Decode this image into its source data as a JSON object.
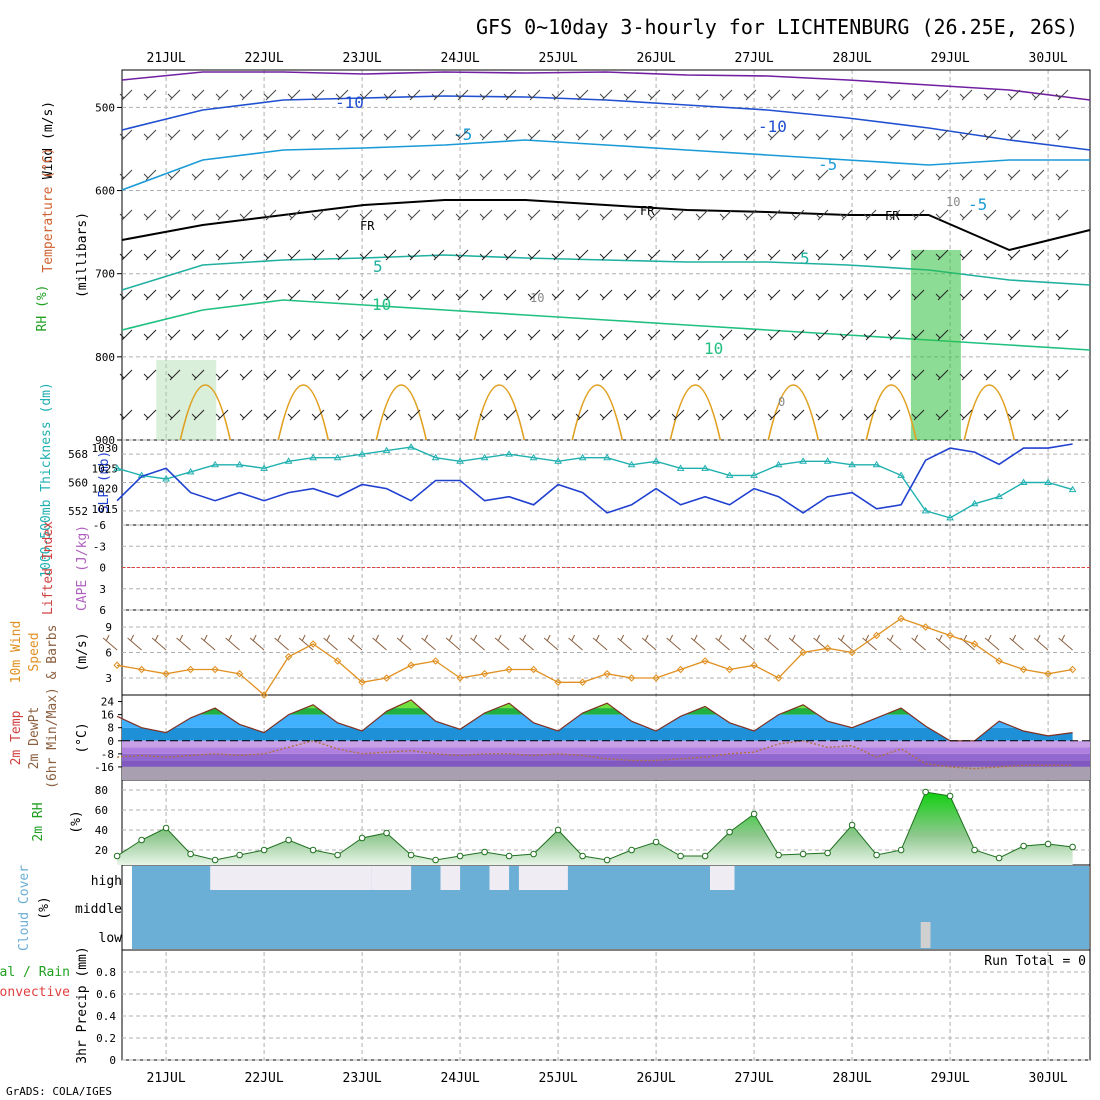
{
  "title": "GFS 0~10day 3-hourly for LICHTENBURG (26.25E, 26S)",
  "credit": "GrADS: COLA/IGES",
  "days": [
    "21JUL",
    "22JUL",
    "23JUL",
    "24JUL",
    "25JUL",
    "26JUL",
    "27JUL",
    "28JUL",
    "29JUL",
    "30JUL"
  ],
  "panels": {
    "upper": {
      "ylabel": "(millibars)",
      "side_labels": [
        {
          "text": "Wind (m/s)",
          "color": "#000000"
        },
        {
          "text": "Temperature (°C)",
          "color": "#d06030"
        },
        {
          "text": "RH (%)",
          "color": "#20a020"
        }
      ],
      "yticks": [
        "500",
        "600",
        "700",
        "800",
        "900"
      ],
      "contour_labels": [
        "-10",
        "-10",
        "-5",
        "-5",
        "-5",
        "5",
        "5",
        "10",
        "10",
        "FR",
        "FR",
        "FR",
        "10",
        "0",
        "10"
      ]
    },
    "slp": {
      "left_label": "1000-500mb Thickness (dm)",
      "right_label": "SLP (mb)",
      "left_ticks": [
        "552",
        "560",
        "568"
      ],
      "right_ticks": [
        "1015",
        "1020",
        "1025",
        "1030"
      ]
    },
    "li": {
      "label1": "Lifted Index",
      "label2": "CAPE (J/kg)",
      "yticks": [
        "-6",
        "-3",
        "0",
        "3",
        "6"
      ]
    },
    "wind10": {
      "label1": "10m Wind",
      "label2": "Speed",
      "label3": "& Barbs",
      "unit": "(m/s)",
      "yticks": [
        "3",
        "6",
        "9"
      ]
    },
    "temp2m": {
      "label1": "2m Temp",
      "label2": "2m DewPt",
      "label3": "(6hr Min/Max)",
      "unit": "(°C)",
      "yticks": [
        "24",
        "16",
        "8",
        "0",
        "-8",
        "-16"
      ]
    },
    "rh2m": {
      "label": "2m RH",
      "unit": "(%)",
      "yticks": [
        "80",
        "60",
        "40",
        "20"
      ]
    },
    "cloud": {
      "label": "Cloud Cover",
      "unit": "(%)",
      "levels": [
        "high",
        "middle",
        "low"
      ]
    },
    "precip": {
      "label1": "Total / Rain",
      "label2": "Convective",
      "ylabel": "3hr Precip (mm)",
      "yticks": [
        "0.8",
        "0.6",
        "0.4",
        "0.2",
        "0"
      ],
      "run_total": "Run Total = 0"
    }
  },
  "colors": {
    "thickness": "#20b0b0",
    "slp": "#2040d0",
    "wind_speed": "#e09020",
    "barbs": "#8b6040",
    "rh": "#20a020",
    "cloud": "#6baed6",
    "grid": "#b0b0b0",
    "zero_line": "#e04040"
  },
  "chart_data": [
    {
      "type": "line",
      "name": "1000-500mb Thickness",
      "units": "dm",
      "x_days": [
        20.5,
        20.75,
        21,
        21.25,
        21.5,
        21.75,
        22,
        22.25,
        22.5,
        22.75,
        23,
        23.25,
        23.5,
        23.75,
        24,
        24.25,
        24.5,
        24.75,
        25,
        25.25,
        25.5,
        25.75,
        26,
        26.25,
        26.5,
        26.75,
        27,
        27.25,
        27.5,
        27.75,
        28,
        28.25,
        28.5,
        28.75,
        29,
        29.25,
        29.5,
        29.75,
        30,
        30.25
      ],
      "values": [
        564,
        562,
        561,
        563,
        565,
        565,
        564,
        566,
        567,
        567,
        568,
        569,
        570,
        567,
        566,
        567,
        568,
        567,
        566,
        567,
        567,
        565,
        566,
        564,
        564,
        562,
        562,
        565,
        566,
        566,
        565,
        565,
        562,
        552,
        550,
        554,
        556,
        560,
        560,
        558
      ]
    },
    {
      "type": "line",
      "name": "SLP",
      "units": "mb",
      "x_days": [
        20.5,
        20.75,
        21,
        21.25,
        21.5,
        21.75,
        22,
        22.25,
        22.5,
        22.75,
        23,
        23.25,
        23.5,
        23.75,
        24,
        24.25,
        24.5,
        24.75,
        25,
        25.25,
        25.5,
        25.75,
        26,
        26.25,
        26.5,
        26.75,
        27,
        27.25,
        27.5,
        27.75,
        28,
        28.25,
        28.5,
        28.75,
        29,
        29.25,
        29.5,
        29.75,
        30,
        30.25
      ],
      "values": [
        1017,
        1023,
        1025,
        1019,
        1017,
        1019,
        1017,
        1019,
        1020,
        1018,
        1021,
        1020,
        1017,
        1022,
        1022,
        1017,
        1018,
        1016,
        1021,
        1019,
        1014,
        1016,
        1020,
        1016,
        1018,
        1016,
        1020,
        1018,
        1014,
        1018,
        1019,
        1015,
        1016,
        1027,
        1030,
        1029,
        1026,
        1030,
        1030,
        1031
      ]
    },
    {
      "type": "line",
      "name": "10m Wind Speed",
      "units": "m/s",
      "x_days": [
        20.5,
        20.75,
        21,
        21.25,
        21.5,
        21.75,
        22,
        22.25,
        22.5,
        22.75,
        23,
        23.25,
        23.5,
        23.75,
        24,
        24.25,
        24.5,
        24.75,
        25,
        25.25,
        25.5,
        25.75,
        26,
        26.25,
        26.5,
        26.75,
        27,
        27.25,
        27.5,
        27.75,
        28,
        28.25,
        28.5,
        28.75,
        29,
        29.25,
        29.5,
        29.75,
        30,
        30.25
      ],
      "values": [
        4.5,
        4,
        3.5,
        4,
        4,
        3.5,
        1,
        5.5,
        7,
        5,
        2.5,
        3,
        4.5,
        5,
        3,
        3.5,
        4,
        4,
        2.5,
        2.5,
        3.5,
        3,
        3,
        4,
        5,
        4,
        4.5,
        3,
        6,
        6.5,
        6,
        8,
        10,
        9,
        8,
        7,
        5,
        4,
        3.5,
        4
      ]
    },
    {
      "type": "area",
      "name": "2m Temp",
      "units": "°C",
      "x_days": [
        20.5,
        20.75,
        21,
        21.25,
        21.5,
        21.75,
        22,
        22.25,
        22.5,
        22.75,
        23,
        23.25,
        23.5,
        23.75,
        24,
        24.25,
        24.5,
        24.75,
        25,
        25.25,
        25.5,
        25.75,
        26,
        26.25,
        26.5,
        26.75,
        27,
        27.25,
        27.5,
        27.75,
        28,
        28.25,
        28.5,
        28.75,
        29,
        29.25,
        29.5,
        29.75,
        30,
        30.25
      ],
      "values": [
        15,
        8,
        5,
        14,
        20,
        10,
        5,
        16,
        22,
        11,
        6,
        18,
        25,
        12,
        7,
        17,
        23,
        11,
        6,
        17,
        23,
        12,
        6,
        15,
        21,
        11,
        6,
        16,
        22,
        12,
        8,
        14,
        20,
        9,
        0,
        0,
        12,
        6,
        3,
        5
      ]
    },
    {
      "type": "line",
      "name": "2m DewPt",
      "units": "°C",
      "x_days": [
        20.5,
        20.75,
        21,
        21.25,
        21.5,
        21.75,
        22,
        22.25,
        22.5,
        22.75,
        23,
        23.25,
        23.5,
        23.75,
        24,
        24.25,
        24.5,
        24.75,
        25,
        25.25,
        25.5,
        25.75,
        26,
        26.25,
        26.5,
        26.75,
        27,
        27.25,
        27.5,
        27.75,
        28,
        28.25,
        28.5,
        28.75,
        29,
        29.25,
        29.5,
        29.75,
        30,
        30.25
      ],
      "values": [
        -10,
        -9,
        -10,
        -9,
        -8,
        -9,
        -8,
        -4,
        0,
        -5,
        -8,
        -7,
        -6,
        -8,
        -9,
        -8,
        -8,
        -9,
        -8,
        -9,
        -11,
        -12,
        -12,
        -11,
        -10,
        -8,
        -7,
        -2,
        0,
        -4,
        -3,
        -10,
        -5,
        -14,
        -16,
        -17,
        -16,
        -15,
        -15,
        -15
      ]
    },
    {
      "type": "area",
      "name": "2m RH",
      "units": "%",
      "x_days": [
        20.5,
        20.75,
        21,
        21.25,
        21.5,
        21.75,
        22,
        22.25,
        22.5,
        22.75,
        23,
        23.25,
        23.5,
        23.75,
        24,
        24.25,
        24.5,
        24.75,
        25,
        25.25,
        25.5,
        25.75,
        26,
        26.25,
        26.5,
        26.75,
        27,
        27.25,
        27.5,
        27.75,
        28,
        28.25,
        28.5,
        28.75,
        29,
        29.25,
        29.5,
        29.75,
        30,
        30.25
      ],
      "values": [
        14,
        30,
        42,
        16,
        10,
        15,
        20,
        30,
        20,
        15,
        32,
        37,
        15,
        10,
        14,
        18,
        14,
        16,
        40,
        14,
        10,
        20,
        28,
        14,
        14,
        38,
        56,
        15,
        16,
        17,
        45,
        15,
        20,
        78,
        74,
        20,
        12,
        24,
        26,
        23
      ]
    },
    {
      "type": "bar",
      "name": "Cloud Cover",
      "units": "%",
      "high_clear_spans": [
        [
          21.45,
          22.3
        ],
        [
          22.3,
          23.1
        ],
        [
          23.1,
          23.5
        ],
        [
          23.8,
          24.0
        ],
        [
          24.3,
          24.5
        ],
        [
          24.6,
          25.1
        ],
        [
          26.55,
          26.8
        ]
      ],
      "low_clear_spans": [
        [
          28.7,
          28.8
        ]
      ]
    },
    {
      "type": "bar",
      "name": "3hr Precip",
      "units": "mm",
      "values": [],
      "ylim": [
        0,
        1
      ]
    }
  ]
}
